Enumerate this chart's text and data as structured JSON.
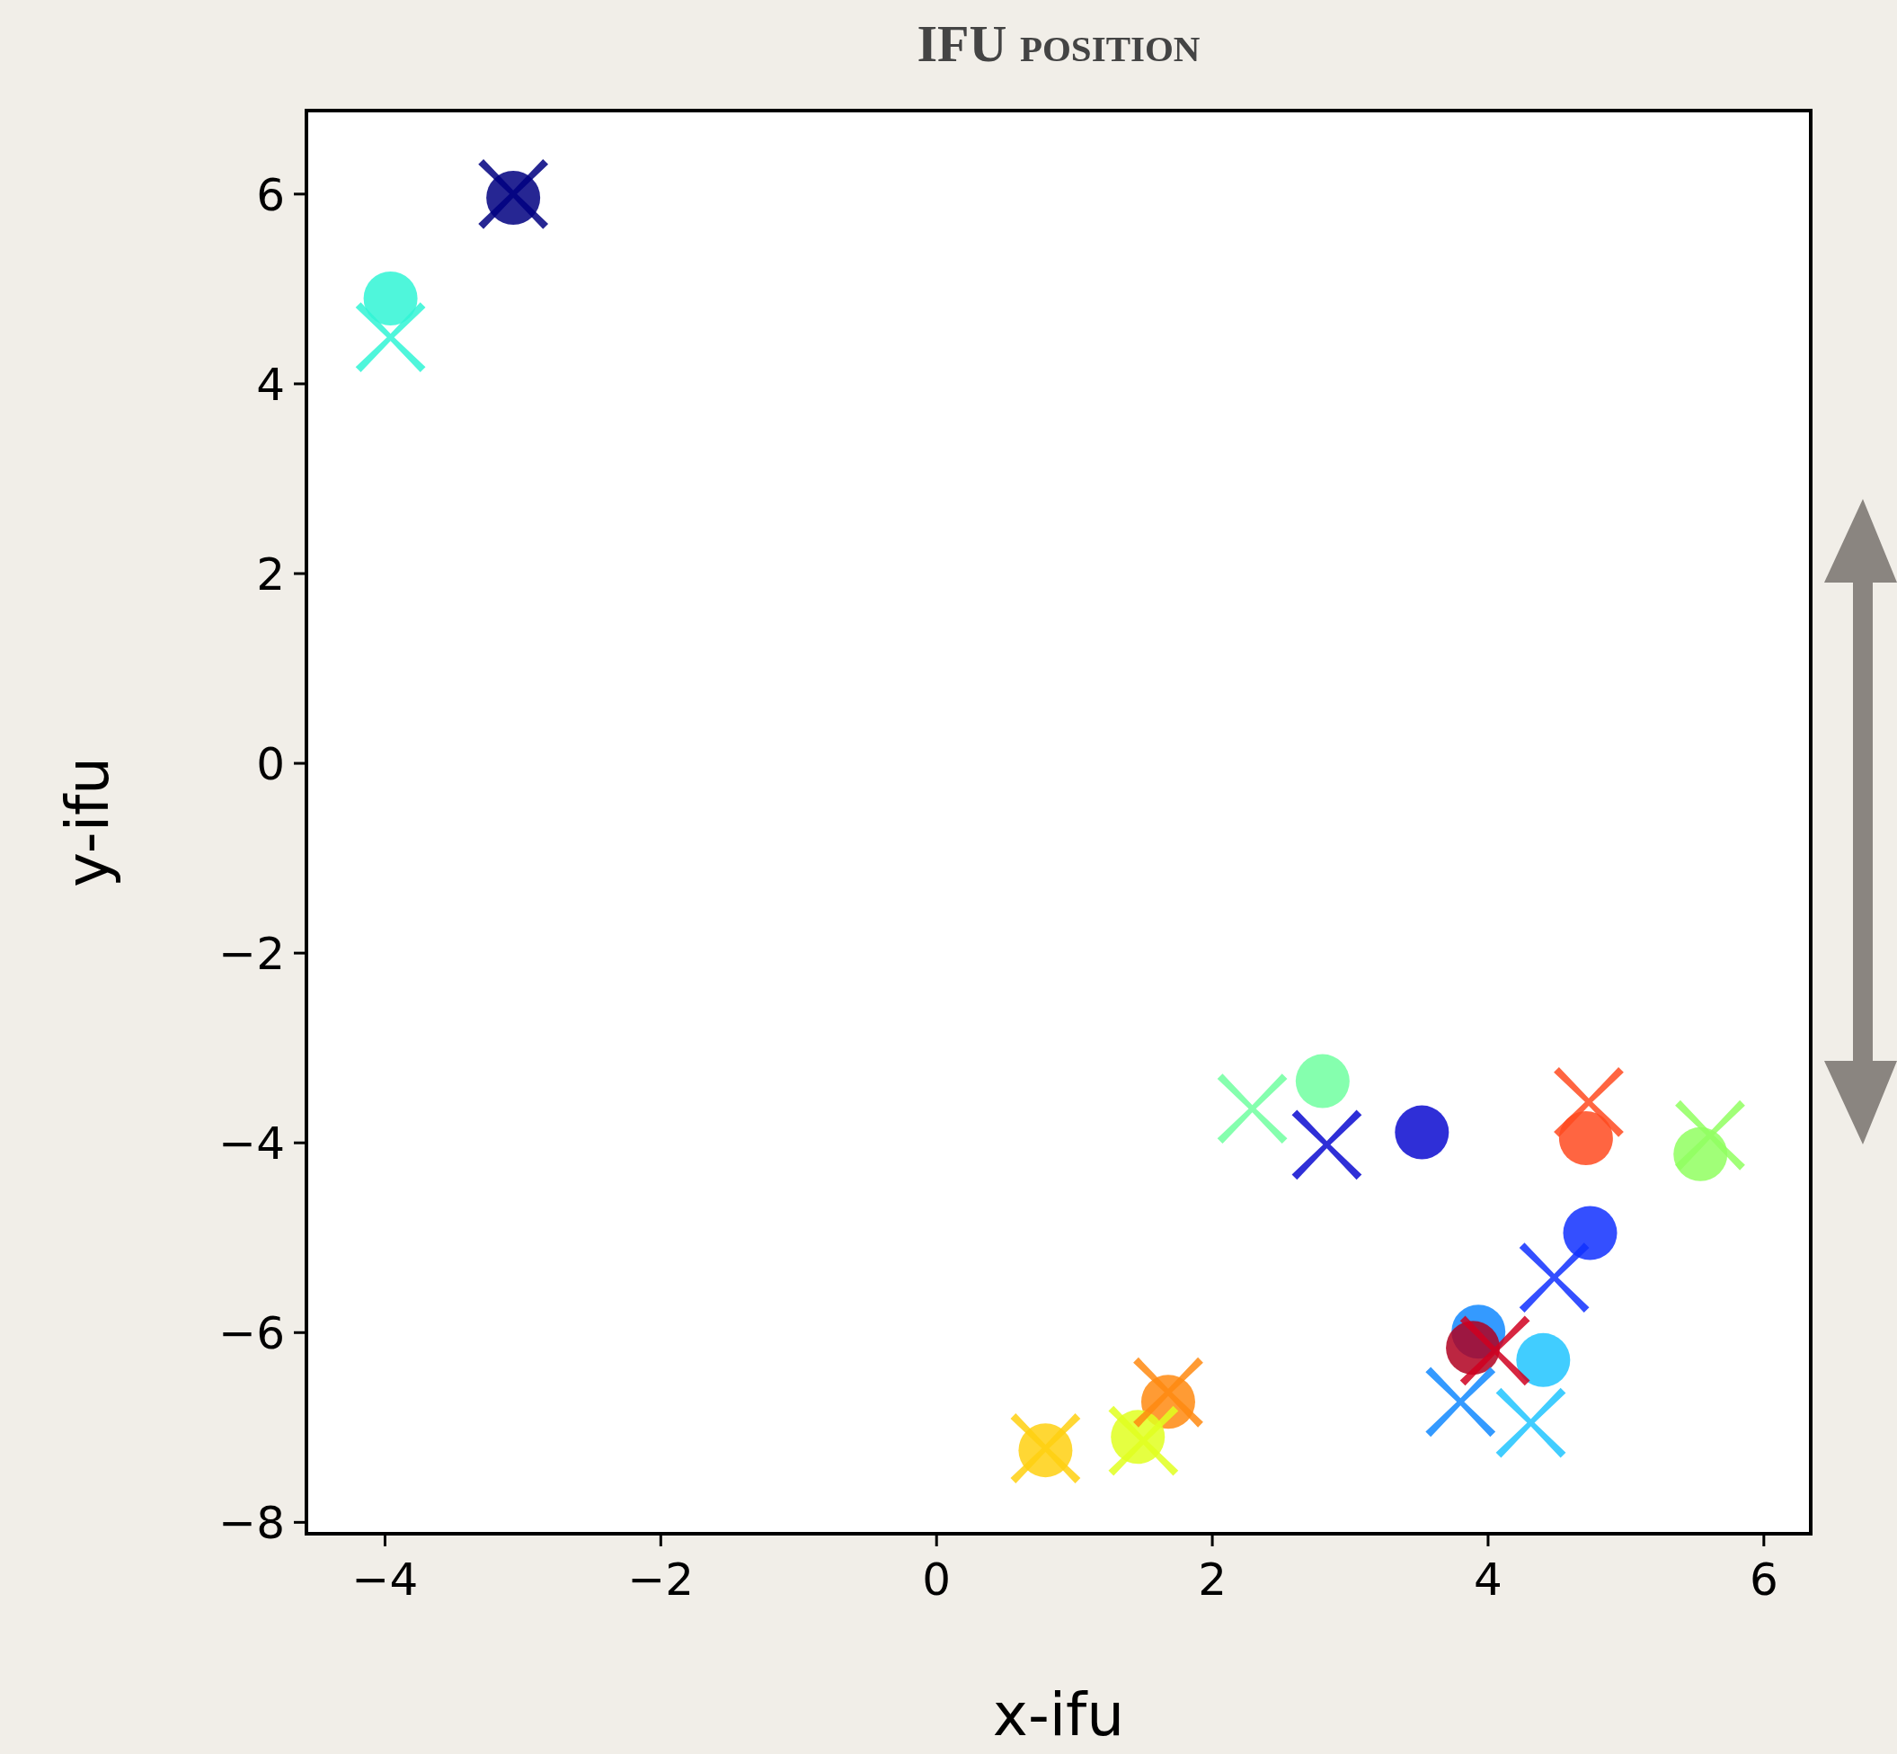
{
  "chart_data": {
    "type": "scatter",
    "title": "IFU position",
    "xlabel": "x-ifu",
    "ylabel": "y-ifu",
    "xlim": [
      -4.57,
      6.34
    ],
    "ylim": [
      -8.12,
      6.88
    ],
    "xticks": [
      {
        "value": -4,
        "label": "−4"
      },
      {
        "value": -2,
        "label": "−2"
      },
      0,
      2,
      4,
      6
    ],
    "yticks": [
      {
        "value": -8,
        "label": "−8"
      },
      {
        "value": -6,
        "label": "−6"
      },
      {
        "value": -4,
        "label": "−4"
      },
      {
        "value": -2,
        "label": "−2"
      },
      0,
      2,
      4,
      6
    ],
    "series": [
      {
        "marker": "circle",
        "x": [
          -3.07,
          -3.96,
          2.8,
          3.52,
          4.71,
          5.54,
          4.74,
          3.93,
          3.89,
          4.4,
          1.68,
          0.79,
          1.46
        ],
        "values": [
          5.96,
          4.9,
          -3.35,
          -3.89,
          -3.95,
          -4.12,
          -4.95,
          -5.99,
          -6.16,
          -6.29,
          -6.73,
          -7.24,
          -7.1
        ],
        "colors": [
          "#000080",
          "#30f5d5",
          "#70ffa0",
          "#0a0ad0",
          "#ff4a20",
          "#90ff60",
          "#1030ff",
          "#1088ff",
          "#b00020",
          "#20c4ff",
          "#ff8a10",
          "#ffd010",
          "#e0ff20"
        ]
      },
      {
        "marker": "cross",
        "x": [
          -3.07,
          -3.96,
          2.29,
          2.83,
          4.73,
          5.61,
          4.48,
          3.8,
          4.05,
          4.31,
          1.68,
          0.79,
          1.5
        ],
        "values": [
          6.0,
          4.49,
          -3.64,
          -4.02,
          -3.57,
          -3.92,
          -5.42,
          -6.73,
          -6.19,
          -6.95,
          -6.63,
          -7.22,
          -7.14
        ],
        "colors": [
          "#000080",
          "#30f5d5",
          "#70ffa0",
          "#0a0ad0",
          "#ff4a20",
          "#90ff60",
          "#1030ff",
          "#1088ff",
          "#d00020",
          "#20c4ff",
          "#ff8a10",
          "#ffd010",
          "#e0ff20"
        ]
      }
    ]
  }
}
